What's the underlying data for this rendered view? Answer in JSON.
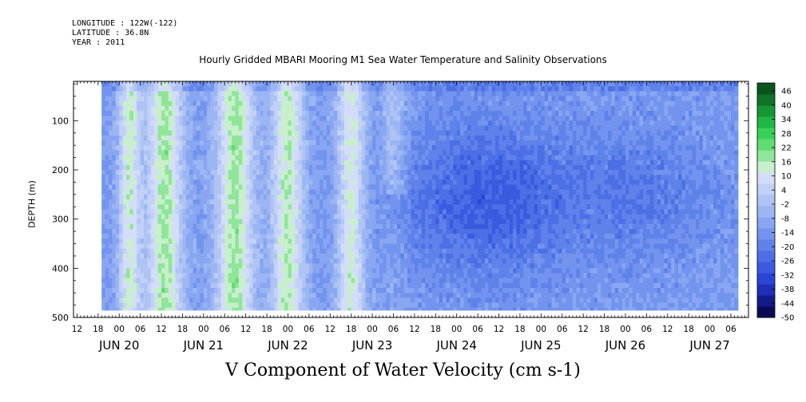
{
  "header": {
    "longitude": "LONGITUDE : 122W(-122)",
    "latitude": "LATITUDE : 36.8N",
    "year": "YEAR : 2011"
  },
  "chart_data": {
    "type": "heatmap",
    "title": "Hourly Gridded MBARI Mooring M1 Sea Water Temperature and Salinity Observations",
    "xlabel": "V Component of Water Velocity (cm s-1)",
    "ylabel": "DEPTH (m)",
    "x_range_hours_since_jun20_00": [
      -13,
      179
    ],
    "data_x_range_hours": [
      -5,
      176
    ],
    "y_range_depth_m": [
      20,
      500
    ],
    "y_inverted": true,
    "y_ticks": [
      100,
      200,
      300,
      400,
      500
    ],
    "x_hour_ticks": [
      "12",
      "18",
      "00",
      "06",
      "12",
      "18",
      "00",
      "06",
      "12",
      "18",
      "00",
      "06",
      "12",
      "18",
      "00",
      "06",
      "12",
      "18",
      "00",
      "06",
      "12",
      "18",
      "00",
      "06",
      "12",
      "18",
      "00",
      "06",
      "12",
      "18",
      "00",
      "06"
    ],
    "x_day_labels": [
      "JUN 20",
      "JUN 21",
      "JUN 22",
      "JUN 23",
      "JUN 24",
      "JUN 25",
      "JUN 26",
      "JUN 27"
    ],
    "colorbar": {
      "min": -50,
      "max": 50,
      "tick_labels": [
        "46",
        "40",
        "34",
        "28",
        "22",
        "16",
        "10",
        "4",
        "-2",
        "-8",
        "-14",
        "-20",
        "-26",
        "-32",
        "-38",
        "-44",
        "-50"
      ],
      "colors": [
        "#0b0b55",
        "#141a8a",
        "#1f2fb8",
        "#2a45d6",
        "#3a5be0",
        "#4c6fe6",
        "#5f82ea",
        "#7394ee",
        "#88a6f1",
        "#9cb6f3",
        "#afc4f5",
        "#c1d1f7",
        "#d3ddf9",
        "#c8efcb",
        "#8fe59a",
        "#5fdc72",
        "#35d255",
        "#1fb843",
        "#169634",
        "#0f7328",
        "#0a551e"
      ]
    },
    "features": [
      {
        "name": "green bands (positive V) JUN 20 18h – JUN 23 06h",
        "value_range": [
          4,
          22
        ]
      },
      {
        "name": "blue core (negative V) JUN 24 – JUN 25, 150–350 m",
        "value_range": [
          -32,
          -20
        ]
      },
      {
        "name": "surface westward-flow layer",
        "value_range": [
          -20,
          -14
        ]
      }
    ]
  }
}
